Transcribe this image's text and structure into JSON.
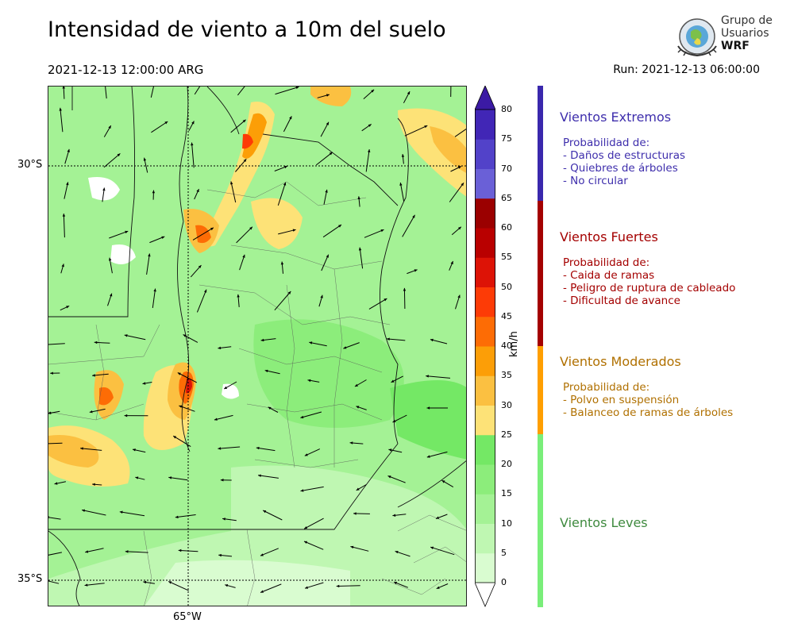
{
  "header": {
    "title": "Intensidad de viento a 10m del suelo",
    "valid_time": "2021-12-13 12:00:00 ARG",
    "run_time": "Run: 2021-12-13 06:00:00"
  },
  "logo": {
    "line1": "Grupo de",
    "line2": "Usuarios",
    "line3": "WRF"
  },
  "map": {
    "lat_labels": [
      "30°S",
      "35°S"
    ],
    "lon_labels": [
      "65°W"
    ]
  },
  "colorbar": {
    "unit": "km/h",
    "ticks": [
      "0",
      "5",
      "10",
      "15",
      "20",
      "25",
      "30",
      "35",
      "40",
      "45",
      "50",
      "55",
      "60",
      "65",
      "70",
      "75",
      "80"
    ],
    "colors": [
      "#ffffff",
      "#d9fcd0",
      "#bff7b2",
      "#a4f295",
      "#8ced7b",
      "#74e865",
      "#fde277",
      "#fbc041",
      "#fc9e07",
      "#fd6c05",
      "#fd3b06",
      "#dd1306",
      "#b90000",
      "#9b0000",
      "#6a60d7",
      "#5242c9",
      "#4126b6",
      "#3b1aa4"
    ]
  },
  "categories": [
    {
      "title": "Vientos Extremos",
      "desc": "Probabilidad de:\n- Daños de estructuras\n- Quiebres de árboles\n- No circular",
      "color": "#3e2eac"
    },
    {
      "title": "Vientos Fuertes",
      "desc": "Probabilidad de:\n- Caida de ramas\n- Peligro de ruptura de cableado\n- Dificultad de avance",
      "color": "#a40000"
    },
    {
      "title": "Vientos Moderados",
      "desc": "Probabilidad de:\n- Polvo en suspensión\n- Balanceo de ramas de árboles",
      "color": "#b07000"
    },
    {
      "title": "Vientos Leves",
      "desc": "",
      "color": "#3f8a3f"
    }
  ],
  "side_bar_colors": {
    "extreme": "#3a28ad",
    "strong": "#a40000",
    "moderate": "#ff9f00",
    "light": "#7aee7a"
  }
}
